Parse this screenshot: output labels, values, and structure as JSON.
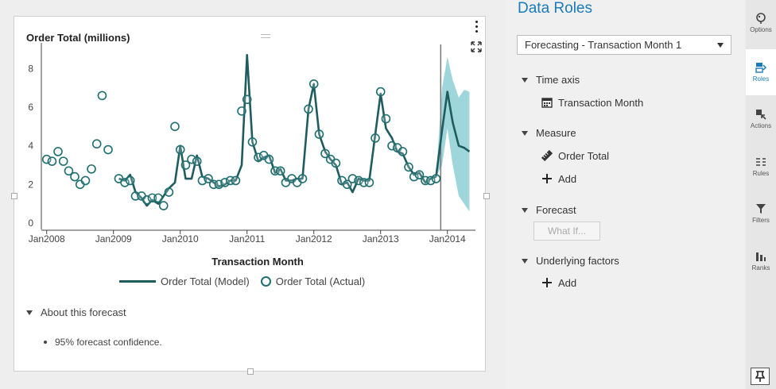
{
  "chart_data": {
    "type": "line",
    "title": "Order Total (millions)",
    "xlabel": "Transaction Month",
    "ylabel": "",
    "ylim": [
      0,
      9
    ],
    "yticks": [
      0,
      2,
      4,
      6,
      8
    ],
    "xticks": [
      "Jan2008",
      "Jan2009",
      "Jan2010",
      "Jan2011",
      "Jan2012",
      "Jan2013",
      "Jan2014"
    ],
    "x_start_year": 2008,
    "series": [
      {
        "name": "Order Total (Model)",
        "style": "line",
        "color": "#1f5c5e",
        "points": [
          [
            2009.08,
            2.3
          ],
          [
            2009.17,
            2.2
          ],
          [
            2009.25,
            2.5
          ],
          [
            2009.33,
            1.6
          ],
          [
            2009.42,
            1.3
          ],
          [
            2009.5,
            0.9
          ],
          [
            2009.58,
            1.2
          ],
          [
            2009.67,
            1.0
          ],
          [
            2009.75,
            1.4
          ],
          [
            2009.83,
            1.8
          ],
          [
            2009.92,
            2.1
          ],
          [
            2010.0,
            4.0
          ],
          [
            2010.08,
            2.3
          ],
          [
            2010.17,
            2.3
          ],
          [
            2010.25,
            3.5
          ],
          [
            2010.33,
            2.4
          ],
          [
            2010.42,
            2.3
          ],
          [
            2010.5,
            2.1
          ],
          [
            2010.58,
            1.9
          ],
          [
            2010.67,
            2.0
          ],
          [
            2010.75,
            2.2
          ],
          [
            2010.83,
            2.2
          ],
          [
            2010.92,
            3.0
          ],
          [
            2011.0,
            8.7
          ],
          [
            2011.08,
            4.2
          ],
          [
            2011.17,
            3.2
          ],
          [
            2011.25,
            3.4
          ],
          [
            2011.33,
            3.5
          ],
          [
            2011.42,
            2.6
          ],
          [
            2011.5,
            2.8
          ],
          [
            2011.58,
            2.2
          ],
          [
            2011.67,
            2.2
          ],
          [
            2011.75,
            2.3
          ],
          [
            2011.83,
            2.3
          ],
          [
            2011.92,
            5.9
          ],
          [
            2012.0,
            7.2
          ],
          [
            2012.08,
            4.6
          ],
          [
            2012.17,
            3.7
          ],
          [
            2012.25,
            3.3
          ],
          [
            2012.33,
            3.0
          ],
          [
            2012.42,
            2.0
          ],
          [
            2012.5,
            2.1
          ],
          [
            2012.58,
            1.6
          ],
          [
            2012.67,
            2.3
          ],
          [
            2012.75,
            2.2
          ],
          [
            2012.83,
            2.2
          ],
          [
            2012.92,
            4.6
          ],
          [
            2013.0,
            6.7
          ],
          [
            2013.08,
            4.9
          ],
          [
            2013.17,
            4.4
          ],
          [
            2013.25,
            3.7
          ],
          [
            2013.33,
            3.6
          ],
          [
            2013.42,
            2.9
          ],
          [
            2013.5,
            2.5
          ],
          [
            2013.58,
            2.6
          ],
          [
            2013.67,
            2.1
          ],
          [
            2013.75,
            2.3
          ],
          [
            2013.83,
            2.4
          ]
        ]
      },
      {
        "name": "Order Total (Actual)",
        "style": "circle",
        "color": "#1f6f70",
        "points": [
          [
            2008.0,
            3.3
          ],
          [
            2008.08,
            3.2
          ],
          [
            2008.17,
            3.7
          ],
          [
            2008.25,
            3.2
          ],
          [
            2008.33,
            2.7
          ],
          [
            2008.42,
            2.4
          ],
          [
            2008.5,
            2.0
          ],
          [
            2008.58,
            2.2
          ],
          [
            2008.67,
            2.8
          ],
          [
            2008.75,
            4.1
          ],
          [
            2008.83,
            6.6
          ],
          [
            2008.92,
            3.8
          ],
          [
            2009.08,
            2.3
          ],
          [
            2009.17,
            2.1
          ],
          [
            2009.25,
            2.2
          ],
          [
            2009.33,
            1.4
          ],
          [
            2009.42,
            1.4
          ],
          [
            2009.5,
            1.2
          ],
          [
            2009.58,
            1.3
          ],
          [
            2009.67,
            1.3
          ],
          [
            2009.75,
            0.9
          ],
          [
            2009.83,
            1.6
          ],
          [
            2009.92,
            5.0
          ],
          [
            2010.0,
            3.8
          ],
          [
            2010.08,
            3.0
          ],
          [
            2010.17,
            3.3
          ],
          [
            2010.25,
            3.2
          ],
          [
            2010.33,
            2.2
          ],
          [
            2010.42,
            2.3
          ],
          [
            2010.5,
            2.0
          ],
          [
            2010.58,
            2.0
          ],
          [
            2010.67,
            2.1
          ],
          [
            2010.75,
            2.2
          ],
          [
            2010.83,
            2.2
          ],
          [
            2010.92,
            5.8
          ],
          [
            2011.0,
            6.4
          ],
          [
            2011.08,
            4.2
          ],
          [
            2011.17,
            3.4
          ],
          [
            2011.25,
            3.5
          ],
          [
            2011.33,
            3.3
          ],
          [
            2011.42,
            2.7
          ],
          [
            2011.5,
            2.7
          ],
          [
            2011.58,
            2.1
          ],
          [
            2011.67,
            2.3
          ],
          [
            2011.75,
            2.1
          ],
          [
            2011.83,
            2.3
          ],
          [
            2011.92,
            5.9
          ],
          [
            2012.0,
            7.2
          ],
          [
            2012.08,
            4.6
          ],
          [
            2012.17,
            3.6
          ],
          [
            2012.25,
            3.3
          ],
          [
            2012.33,
            3.1
          ],
          [
            2012.42,
            2.2
          ],
          [
            2012.5,
            2.0
          ],
          [
            2012.58,
            2.3
          ],
          [
            2012.67,
            2.2
          ],
          [
            2012.75,
            2.1
          ],
          [
            2012.83,
            2.1
          ],
          [
            2012.92,
            4.4
          ],
          [
            2013.0,
            6.8
          ],
          [
            2013.08,
            5.4
          ],
          [
            2013.17,
            4.0
          ],
          [
            2013.25,
            3.9
          ],
          [
            2013.33,
            3.7
          ],
          [
            2013.42,
            2.9
          ],
          [
            2013.5,
            2.4
          ],
          [
            2013.58,
            2.5
          ],
          [
            2013.67,
            2.2
          ],
          [
            2013.75,
            2.2
          ],
          [
            2013.83,
            2.3
          ]
        ]
      },
      {
        "name": "Forecast",
        "style": "forecast-line",
        "color": "#1f5c5e",
        "points": [
          [
            2013.83,
            2.4
          ],
          [
            2013.92,
            4.8
          ],
          [
            2014.0,
            6.8
          ],
          [
            2014.08,
            5.2
          ],
          [
            2014.17,
            4.0
          ],
          [
            2014.25,
            3.9
          ],
          [
            2014.33,
            3.7
          ]
        ]
      }
    ],
    "confidence_band": {
      "color": "#8dcfd5",
      "upper": [
        [
          2013.83,
          2.4
        ],
        [
          2013.92,
          7.0
        ],
        [
          2014.0,
          8.6
        ],
        [
          2014.08,
          7.4
        ],
        [
          2014.17,
          6.5
        ],
        [
          2014.25,
          6.9
        ],
        [
          2014.33,
          6.8
        ]
      ],
      "lower": [
        [
          2013.83,
          2.4
        ],
        [
          2013.92,
          3.0
        ],
        [
          2014.0,
          4.9
        ],
        [
          2014.08,
          3.0
        ],
        [
          2014.17,
          1.4
        ],
        [
          2014.25,
          1.0
        ],
        [
          2014.33,
          0.6
        ]
      ]
    },
    "forecast_start": 2013.9,
    "legend": "bottom"
  },
  "legend": {
    "model_label": "Order Total (Model)",
    "actual_label": "Order Total (Actual)"
  },
  "about": {
    "heading": "About this forecast",
    "item": "95% forecast confidence."
  },
  "panel": {
    "title": "Data Roles",
    "dropdown_value": "Forecasting - Transaction Month 1",
    "time_axis": {
      "label": "Time axis",
      "item": "Transaction Month"
    },
    "measure": {
      "label": "Measure",
      "item": "Order Total",
      "add": "Add"
    },
    "forecast": {
      "label": "Forecast",
      "what_if": "What If..."
    },
    "underlying": {
      "label": "Underlying factors",
      "add": "Add"
    }
  },
  "tabs": [
    {
      "label": "Options",
      "icon": "palette-icon"
    },
    {
      "label": "Roles",
      "icon": "roles-icon",
      "active": true
    },
    {
      "label": "Actions",
      "icon": "actions-icon"
    },
    {
      "label": "Rules",
      "icon": "rules-icon"
    },
    {
      "label": "Filters",
      "icon": "filter-icon"
    },
    {
      "label": "Ranks",
      "icon": "ranks-icon"
    }
  ],
  "colors": {
    "accent": "#1a7bb8",
    "model": "#1f5c5e",
    "band": "#8dcfd5"
  }
}
